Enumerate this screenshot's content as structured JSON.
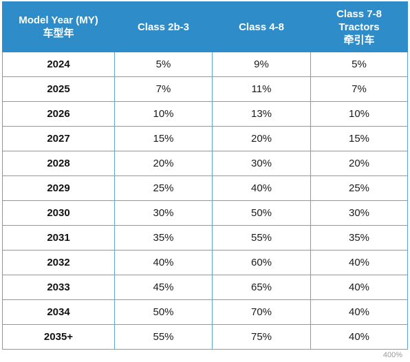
{
  "header": {
    "col0": {
      "line1": "Model Year (MY)",
      "line2": "车型年"
    },
    "col1": {
      "line1": "Class 2b-3"
    },
    "col2": {
      "line1": "Class 4-8"
    },
    "col3": {
      "line1": "Class 7-8",
      "line2": "Tractors",
      "line3": "牵引车"
    }
  },
  "rows": [
    {
      "year": "2024",
      "c2b3": "5%",
      "c48": "9%",
      "tractors": "5%"
    },
    {
      "year": "2025",
      "c2b3": "7%",
      "c48": "11%",
      "tractors": "7%"
    },
    {
      "year": "2026",
      "c2b3": "10%",
      "c48": "13%",
      "tractors": "10%"
    },
    {
      "year": "2027",
      "c2b3": "15%",
      "c48": "20%",
      "tractors": "15%"
    },
    {
      "year": "2028",
      "c2b3": "20%",
      "c48": "30%",
      "tractors": "20%"
    },
    {
      "year": "2029",
      "c2b3": "25%",
      "c48": "40%",
      "tractors": "25%"
    },
    {
      "year": "2030",
      "c2b3": "30%",
      "c48": "50%",
      "tractors": "30%"
    },
    {
      "year": "2031",
      "c2b3": "35%",
      "c48": "55%",
      "tractors": "35%"
    },
    {
      "year": "2032",
      "c2b3": "40%",
      "c48": "60%",
      "tractors": "40%"
    },
    {
      "year": "2033",
      "c2b3": "45%",
      "c48": "65%",
      "tractors": "40%"
    },
    {
      "year": "2034",
      "c2b3": "50%",
      "c48": "70%",
      "tractors": "40%"
    },
    {
      "year": "2035+",
      "c2b3": "55%",
      "c48": "75%",
      "tractors": "40%"
    }
  ],
  "watermark": "400%",
  "colors": {
    "header_bg": "#2e8cc8",
    "header_text": "#ffffff",
    "grid_line": "#5aa6d8"
  }
}
